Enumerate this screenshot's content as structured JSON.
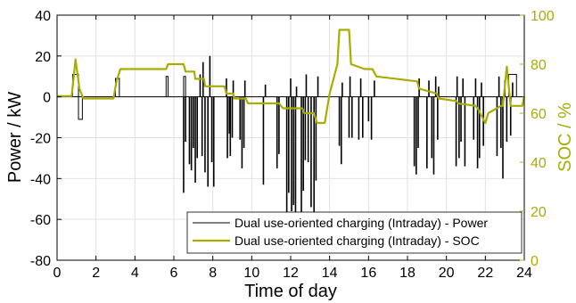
{
  "chart_data": {
    "type": "line",
    "title": "",
    "xlabel": "Time of day",
    "ylabel_left": "Power / kW",
    "ylabel_right": "SOC / %",
    "xlim": [
      0,
      24
    ],
    "ylim_left": [
      -80,
      40
    ],
    "ylim_right": [
      0,
      100
    ],
    "x_ticks": [
      0,
      2,
      4,
      6,
      8,
      10,
      12,
      14,
      16,
      18,
      20,
      22,
      24
    ],
    "y_left_ticks": [
      -80,
      -60,
      -40,
      -20,
      0,
      20,
      40
    ],
    "y_right_ticks": [
      0,
      20,
      40,
      60,
      80,
      100
    ],
    "grid": true,
    "legend_position": "bottom-right",
    "colors": {
      "power": "#000000",
      "soc": "#a8ad00",
      "right_axis": "#a8ad00",
      "grid": "#e2e2e2"
    },
    "series": [
      {
        "name": "Dual use-oriented charging (Intraday) - Power",
        "axis": "left",
        "baseline": 0,
        "pulses": [
          [
            0.8,
            1.1,
            11
          ],
          [
            1.1,
            1.3,
            -11
          ],
          [
            3.0,
            3.2,
            9
          ],
          [
            5.6,
            5.7,
            10
          ],
          [
            6.5,
            6.6,
            10
          ],
          [
            23.2,
            23.6,
            11
          ]
        ],
        "spikes": [
          [
            6.5,
            -47
          ],
          [
            6.6,
            -22
          ],
          [
            6.8,
            -33
          ],
          [
            6.9,
            -36
          ],
          [
            7.0,
            -25
          ],
          [
            7.1,
            -42
          ],
          [
            7.2,
            -30
          ],
          [
            7.35,
            11
          ],
          [
            7.45,
            -29
          ],
          [
            7.5,
            17
          ],
          [
            7.6,
            -37
          ],
          [
            7.75,
            -44
          ],
          [
            7.85,
            20
          ],
          [
            7.95,
            -32
          ],
          [
            8.05,
            -44
          ],
          [
            8.7,
            9
          ],
          [
            8.75,
            -30
          ],
          [
            8.85,
            -18
          ],
          [
            8.9,
            -29
          ],
          [
            9.0,
            -20
          ],
          [
            9.05,
            8
          ],
          [
            9.4,
            -21
          ],
          [
            9.5,
            -35
          ],
          [
            9.6,
            -25
          ],
          [
            9.65,
            8
          ],
          [
            10.6,
            -43
          ],
          [
            10.7,
            6
          ],
          [
            11.3,
            -35
          ],
          [
            11.4,
            -28
          ],
          [
            11.8,
            -60
          ],
          [
            11.9,
            -47
          ],
          [
            12.0,
            9
          ],
          [
            12.05,
            -56
          ],
          [
            12.15,
            -53
          ],
          [
            12.25,
            -57
          ],
          [
            12.3,
            5
          ],
          [
            12.55,
            -70
          ],
          [
            12.65,
            -46
          ],
          [
            12.75,
            -31
          ],
          [
            12.8,
            11
          ],
          [
            12.9,
            -32
          ],
          [
            13.05,
            -54
          ],
          [
            13.2,
            -69
          ],
          [
            13.3,
            -41
          ],
          [
            13.4,
            10
          ],
          [
            14.5,
            -24
          ],
          [
            14.6,
            -33
          ],
          [
            14.65,
            7
          ],
          [
            15.0,
            -20
          ],
          [
            15.05,
            10
          ],
          [
            15.15,
            -20
          ],
          [
            15.5,
            -21
          ],
          [
            15.6,
            9
          ],
          [
            15.7,
            -20
          ],
          [
            16.0,
            -12
          ],
          [
            16.15,
            -21
          ],
          [
            16.3,
            8
          ],
          [
            18.35,
            -34
          ],
          [
            18.45,
            -38
          ],
          [
            18.55,
            -25
          ],
          [
            18.6,
            9
          ],
          [
            19.0,
            -35
          ],
          [
            19.1,
            8
          ],
          [
            19.25,
            -30
          ],
          [
            19.35,
            -38
          ],
          [
            19.45,
            10
          ],
          [
            19.55,
            -21
          ],
          [
            19.6,
            5
          ],
          [
            20.5,
            -34
          ],
          [
            20.55,
            10
          ],
          [
            20.65,
            -30
          ],
          [
            20.75,
            -22
          ],
          [
            20.85,
            9
          ],
          [
            20.95,
            -34
          ],
          [
            21.4,
            -21
          ],
          [
            21.5,
            9
          ],
          [
            21.6,
            -35
          ],
          [
            21.7,
            -30
          ],
          [
            21.8,
            7
          ],
          [
            21.9,
            -24
          ],
          [
            22.6,
            -29
          ],
          [
            22.7,
            10
          ],
          [
            22.8,
            -25
          ],
          [
            22.9,
            -40
          ],
          [
            23.0,
            8
          ],
          [
            23.1,
            -22
          ],
          [
            23.3,
            -19
          ],
          [
            23.4,
            7
          ]
        ]
      },
      {
        "name": "Dual use-oriented charging (Intraday) - SOC",
        "axis": "right",
        "x": [
          0,
          0.75,
          0.95,
          1.15,
          1.35,
          2.9,
          3.05,
          3.25,
          5.6,
          5.7,
          6.5,
          6.6,
          7.05,
          7.1,
          7.55,
          7.6,
          8.6,
          8.7,
          9.05,
          9.1,
          9.7,
          9.8,
          11.4,
          11.6,
          12.6,
          12.7,
          13.2,
          13.35,
          13.75,
          14.0,
          14.4,
          14.5,
          15.0,
          15.1,
          15.8,
          16.2,
          16.4,
          18.5,
          18.6,
          19.5,
          19.6,
          20.5,
          20.6,
          21.5,
          21.6,
          22.0,
          22.15,
          22.8,
          22.9,
          23.1,
          23.3,
          23.9,
          24.0
        ],
        "values": [
          67,
          67,
          82,
          70,
          66,
          66,
          73,
          78,
          78,
          80,
          80,
          77,
          77,
          74,
          74,
          71,
          71,
          68,
          68,
          66,
          66,
          64,
          64,
          62,
          62,
          60,
          60,
          56,
          56,
          68,
          80,
          94,
          94,
          80,
          78,
          78,
          75,
          73,
          70,
          68,
          66,
          65,
          64,
          63,
          62,
          56,
          60,
          63,
          63,
          79,
          63,
          63,
          67
        ]
      }
    ]
  }
}
